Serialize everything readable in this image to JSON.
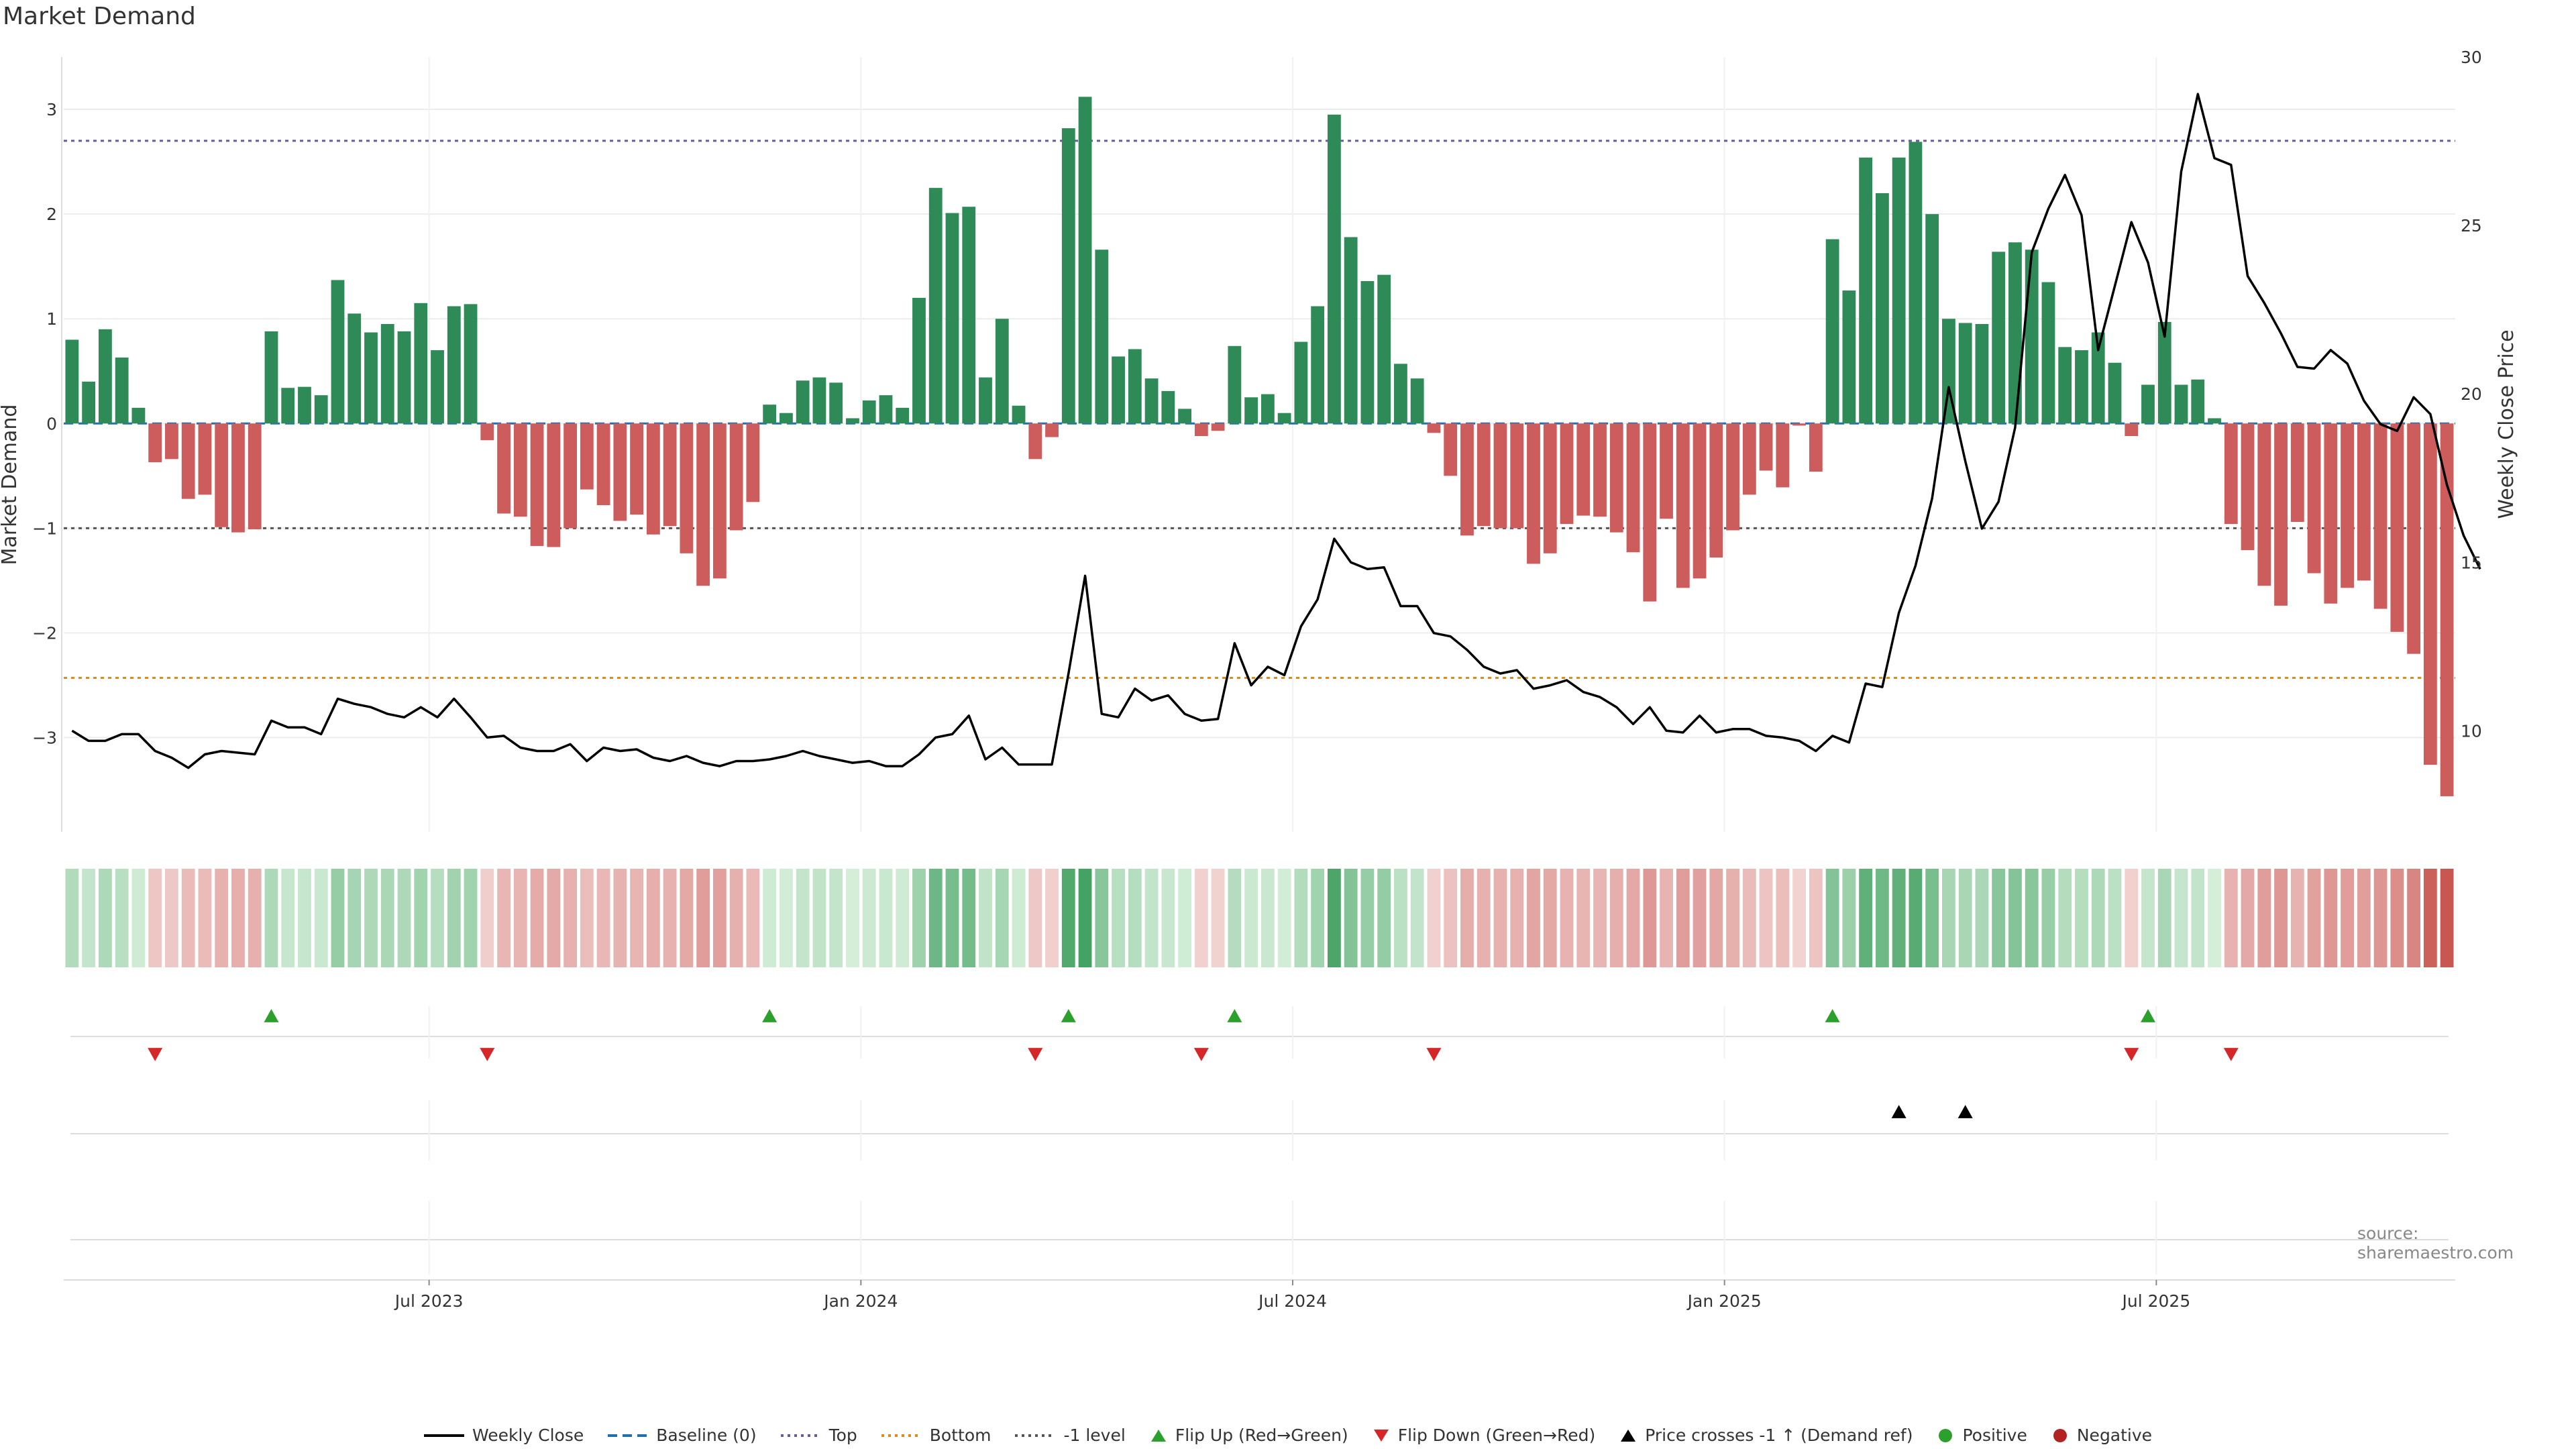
{
  "chart_data": {
    "type": "bar",
    "title": "Market Demand",
    "ylabel_left": "Market Demand",
    "ylabel_right": "Weekly Close Price",
    "y_left_range": [
      -3.9,
      3.5
    ],
    "y_left_ticks": [
      "3",
      "2",
      "1",
      "0",
      "−1",
      "−2",
      "−3"
    ],
    "y_left_tick_values": [
      3,
      2,
      1,
      0,
      -1,
      -2,
      -3
    ],
    "y_right_range": [
      7.0,
      30.0
    ],
    "y_right_ticks": [
      "30",
      "25",
      "20",
      "15",
      "10"
    ],
    "y_right_tick_values": [
      30,
      25,
      20,
      15,
      10
    ],
    "x_ticks": [
      {
        "label": "Jul 2023",
        "week": 22
      },
      {
        "label": "Jan 2024",
        "week": 48
      },
      {
        "label": "Jul 2024",
        "week": 74
      },
      {
        "label": "Jan 2025",
        "week": 100
      },
      {
        "label": "Jul 2025",
        "week": 126
      }
    ],
    "weeks": 144,
    "reference_lines": {
      "top": 2.7,
      "bottom": -2.43,
      "minus_one_level": -1,
      "baseline": 0
    },
    "demand_values": [
      0.8,
      0.4,
      0.9,
      0.63,
      0.15,
      -0.37,
      -0.34,
      -0.72,
      -0.68,
      -0.99,
      -1.04,
      -1.01,
      0.88,
      0.34,
      0.35,
      0.27,
      1.37,
      1.05,
      0.87,
      0.95,
      0.88,
      1.15,
      0.7,
      1.12,
      1.14,
      -0.16,
      -0.86,
      -0.89,
      -1.17,
      -1.18,
      -1.0,
      -0.63,
      -0.78,
      -0.93,
      -0.87,
      -1.06,
      -0.98,
      -1.24,
      -1.55,
      -1.48,
      -1.02,
      -0.75,
      0.18,
      0.1,
      0.41,
      0.44,
      0.39,
      0.05,
      0.22,
      0.27,
      0.15,
      1.2,
      2.25,
      2.01,
      2.07,
      0.44,
      1.0,
      0.17,
      -0.34,
      -0.13,
      2.82,
      3.12,
      1.66,
      0.64,
      0.71,
      0.43,
      0.31,
      0.14,
      -0.12,
      -0.07,
      0.74,
      0.25,
      0.28,
      0.1,
      0.78,
      1.12,
      2.95,
      1.78,
      1.36,
      1.42,
      0.57,
      0.43,
      -0.09,
      -0.5,
      -1.07,
      -0.98,
      -1.0,
      -1.0,
      -1.34,
      -1.24,
      -0.96,
      -0.88,
      -0.89,
      -1.04,
      -1.23,
      -1.7,
      -0.91,
      -1.57,
      -1.48,
      -1.28,
      -1.02,
      -0.68,
      -0.45,
      -0.61,
      -0.02,
      -0.46,
      1.76,
      1.27,
      2.54,
      2.2,
      2.54,
      2.69,
      2.0,
      1.0,
      0.96,
      0.95,
      1.64,
      1.73,
      1.66,
      1.35,
      0.73,
      0.7,
      0.87,
      0.58,
      -0.12,
      0.37,
      0.97,
      0.37,
      0.42,
      0.05,
      -0.96,
      -1.21,
      -1.55,
      -1.74,
      -0.94,
      -1.43,
      -1.72,
      -1.57,
      -1.5,
      -1.77,
      -1.99,
      -2.2,
      -3.26,
      -3.56
    ],
    "weekly_close": [
      10.0,
      9.7,
      9.7,
      9.9,
      9.9,
      9.4,
      9.2,
      8.9,
      9.3,
      9.4,
      9.35,
      9.3,
      10.3,
      10.1,
      10.1,
      9.9,
      10.95,
      10.8,
      10.7,
      10.5,
      10.4,
      10.7,
      10.4,
      10.95,
      10.4,
      9.8,
      9.85,
      9.5,
      9.4,
      9.4,
      9.6,
      9.1,
      9.5,
      9.4,
      9.45,
      9.2,
      9.1,
      9.25,
      9.05,
      8.95,
      9.1,
      9.1,
      9.15,
      9.25,
      9.4,
      9.25,
      9.15,
      9.05,
      9.1,
      8.95,
      8.95,
      9.3,
      9.8,
      9.9,
      10.45,
      9.15,
      9.5,
      9.0,
      9.0,
      9.0,
      11.7,
      14.6,
      10.5,
      10.4,
      11.25,
      10.9,
      11.05,
      10.5,
      10.3,
      10.35,
      12.6,
      11.35,
      11.9,
      11.65,
      13.1,
      13.9,
      15.7,
      15.0,
      14.8,
      14.85,
      13.7,
      13.7,
      12.9,
      12.8,
      12.4,
      11.9,
      11.7,
      11.8,
      11.25,
      11.35,
      11.5,
      11.15,
      11.0,
      10.7,
      10.2,
      10.7,
      10.0,
      9.95,
      10.45,
      9.95,
      10.05,
      10.05,
      9.85,
      9.8,
      9.7,
      9.4,
      9.85,
      9.65,
      11.4,
      11.3,
      13.5,
      14.9,
      16.9,
      20.2,
      18.0,
      16.0,
      16.8,
      19.0,
      24.2,
      25.5,
      26.5,
      25.3,
      21.3,
      23.2,
      25.1,
      23.9,
      21.7,
      26.6,
      28.9,
      27.0,
      26.8,
      23.5,
      22.7,
      21.8,
      20.8,
      20.75,
      21.3,
      20.9,
      19.8,
      19.1,
      18.9,
      19.9,
      19.4,
      17.3,
      15.8,
      14.8
    ],
    "flip_up_weeks": [
      12,
      42,
      60,
      70,
      106,
      125
    ],
    "flip_down_weeks": [
      5,
      25,
      58,
      68,
      82,
      124,
      130
    ],
    "price_cross_weeks": [
      110,
      114
    ],
    "legend": [
      {
        "label": "Weekly Close",
        "kind": "line",
        "color": "#000000"
      },
      {
        "label": "Baseline (0)",
        "kind": "dashed",
        "color": "#1f6fb5"
      },
      {
        "label": "Top",
        "kind": "dotted",
        "color": "#6a5a9a"
      },
      {
        "label": "Bottom",
        "kind": "dotted",
        "color": "#e08a1e"
      },
      {
        "label": "-1 level",
        "kind": "dotted",
        "color": "#555555"
      },
      {
        "label": "Flip Up (Red→Green)",
        "kind": "tri-up",
        "color": "#2ca02c"
      },
      {
        "label": "Flip Down (Green→Red)",
        "kind": "tri-down",
        "color": "#d62728"
      },
      {
        "label": "Price crosses -1 ↑ (Demand ref)",
        "kind": "tri-up",
        "color": "#000000"
      },
      {
        "label": "Positive",
        "kind": "dot",
        "color": "#2ca02c"
      },
      {
        "label": "Negative",
        "kind": "dot",
        "color": "#b22222"
      }
    ],
    "colors": {
      "positive_bar": "#2e8b57",
      "negative_bar": "#cd5c5c",
      "grid": "#ececec"
    }
  },
  "source": "source: sharemaestro.com"
}
